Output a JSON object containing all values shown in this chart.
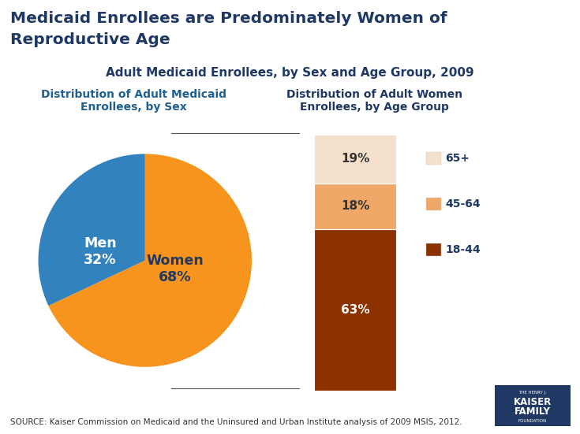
{
  "title_line1": "Medicaid Enrollees are Predominately Women of",
  "title_line2": "Reproductive Age",
  "subtitle": "Adult Medicaid Enrollees, by Sex and Age Group, 2009",
  "pie_title": "Distribution of Adult Medicaid\nEnrollees, by Sex",
  "bar_title": "Distribution of Adult Women\nEnrollees, by Age Group",
  "pie_labels": [
    "Women",
    "Men"
  ],
  "pie_values": [
    68,
    32
  ],
  "pie_colors": [
    "#F7941D",
    "#3182BD"
  ],
  "pie_label_women": "Women\n68%",
  "pie_label_men": "Men\n32%",
  "bar_categories": [
    "18-44",
    "45-64",
    "65+"
  ],
  "bar_values": [
    63,
    18,
    19
  ],
  "bar_colors": [
    "#8B3200",
    "#F0A868",
    "#F5E0CC"
  ],
  "bar_label_percents": [
    "63%",
    "18%",
    "19%"
  ],
  "bar_label_colors": [
    "white",
    "#333333",
    "#333333"
  ],
  "legend_labels": [
    "65+",
    "45-64",
    "18-44"
  ],
  "legend_colors": [
    "#F5E0CC",
    "#F0A868",
    "#8B3200"
  ],
  "source_text": "SOURCE: Kaiser Commission on Medicaid and the Uninsured and Urban Institute analysis of 2009 MSIS, 2012.",
  "title_color": "#1F3864",
  "subtitle_color": "#1F3864",
  "pie_title_color": "#1F6094",
  "bar_title_color": "#1F3864",
  "background_color": "#FFFFFF"
}
